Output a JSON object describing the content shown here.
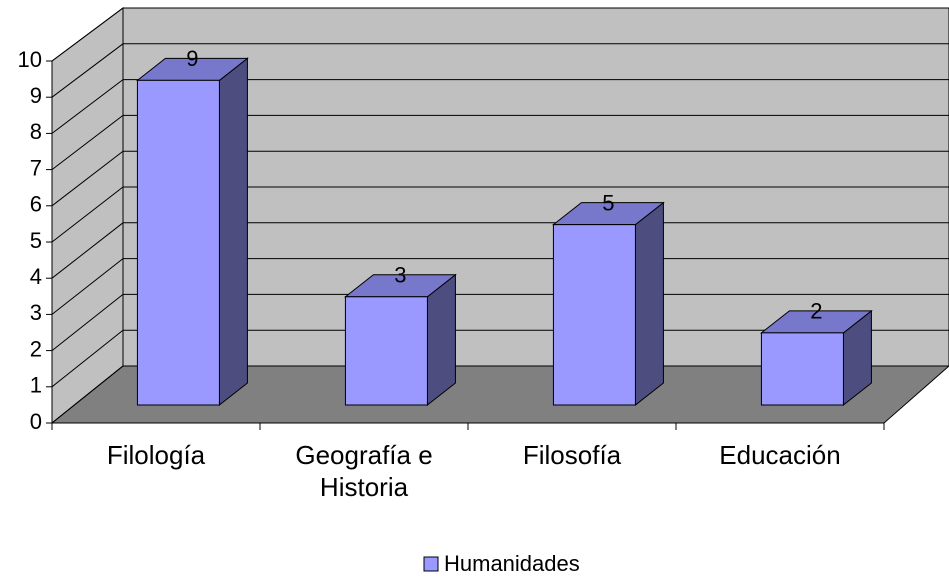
{
  "chart_data": {
    "type": "bar3d",
    "categories": [
      "Filología",
      "Geografía e Historia",
      "Filosofía",
      "Educación"
    ],
    "series": [
      {
        "name": "Humanidades",
        "color": "#9999ff",
        "values": [
          9,
          3,
          5,
          2
        ]
      }
    ],
    "ylim": [
      0,
      10
    ],
    "yticks": [
      0,
      1,
      2,
      3,
      4,
      5,
      6,
      7,
      8,
      9,
      10
    ],
    "grid": true,
    "legend": "bottom"
  }
}
